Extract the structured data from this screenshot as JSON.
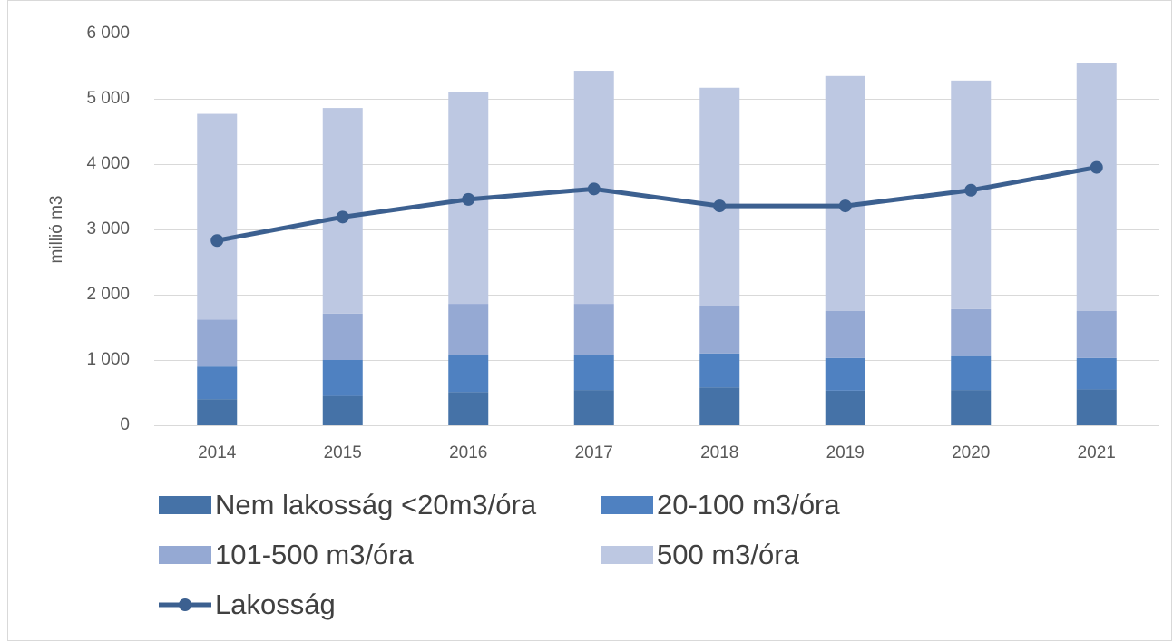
{
  "chart_data": {
    "type": "bar",
    "stacked": true,
    "y_label": "millió m3",
    "categories": [
      "2014",
      "2015",
      "2016",
      "2017",
      "2018",
      "2019",
      "2020",
      "2021"
    ],
    "series": [
      {
        "name": "Nem lakosság <20m3/óra",
        "type": "bar",
        "color": "#4572a7",
        "values": [
          400,
          450,
          510,
          540,
          580,
          530,
          540,
          550
        ]
      },
      {
        "name": "20-100 m3/óra",
        "type": "bar",
        "color": "#4f81c1",
        "values": [
          500,
          550,
          570,
          540,
          520,
          500,
          520,
          480
        ]
      },
      {
        "name": "101-500 m3/óra",
        "type": "bar",
        "color": "#95a9d3",
        "values": [
          720,
          710,
          780,
          780,
          720,
          720,
          720,
          720
        ]
      },
      {
        "name": "500 m3/óra",
        "type": "bar",
        "color": "#bdc8e2",
        "values": [
          3150,
          3150,
          3240,
          3570,
          3350,
          3600,
          3500,
          3800
        ]
      },
      {
        "name": "Lakosság",
        "type": "line",
        "color": "#3c6090",
        "values": [
          2830,
          3190,
          3460,
          3620,
          3360,
          3360,
          3600,
          3950
        ]
      }
    ],
    "ylim": [
      0,
      6000
    ],
    "yticks": [
      0,
      {
        "value": 1000,
        "label": "1 000"
      },
      {
        "value": 2000,
        "label": "2 000"
      },
      {
        "value": 3000,
        "label": "3 000"
      },
      {
        "value": 4000,
        "label": "4 000"
      },
      {
        "value": 5000,
        "label": "5 000"
      },
      {
        "value": 6000,
        "label": "6 000"
      }
    ],
    "grid": true,
    "legend": "bottom"
  }
}
